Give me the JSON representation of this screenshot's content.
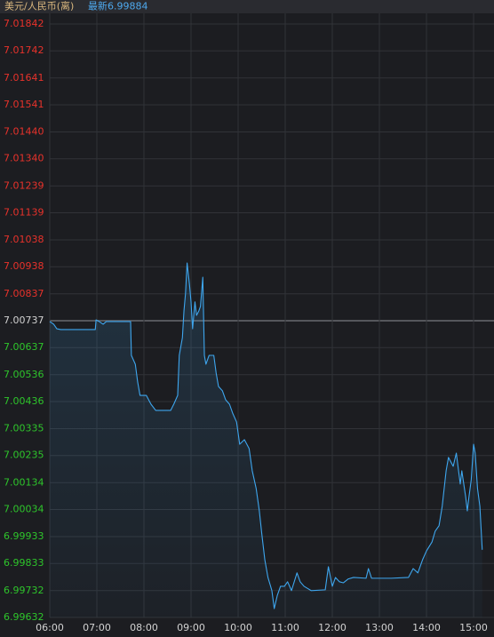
{
  "chart_data": {
    "type": "line",
    "title": "美元/人民币(离)",
    "subtitle": "最新6.99884",
    "x": [
      "06:00",
      "06:05",
      "06:09",
      "06:14",
      "06:58",
      "06:59",
      "07:03",
      "07:08",
      "07:12",
      "07:43",
      "07:44",
      "07:49",
      "07:52",
      "07:55",
      "08:03",
      "08:09",
      "08:15",
      "08:34",
      "08:38",
      "08:43",
      "08:45",
      "08:49",
      "08:51",
      "08:53",
      "08:55",
      "08:58",
      "09:00",
      "09:02",
      "09:05",
      "09:07",
      "09:10",
      "09:12",
      "09:15",
      "09:17",
      "09:19",
      "09:23",
      "09:29",
      "09:32",
      "09:35",
      "09:40",
      "09:44",
      "09:49",
      "09:53",
      "09:58",
      "10:02",
      "10:08",
      "10:14",
      "10:18",
      "10:23",
      "10:27",
      "10:30",
      "10:34",
      "10:38",
      "10:43",
      "10:46",
      "10:50",
      "10:54",
      "10:59",
      "11:03",
      "11:08",
      "11:15",
      "11:19",
      "11:24",
      "11:28",
      "11:33",
      "11:51",
      "11:55",
      "12:00",
      "12:04",
      "12:09",
      "12:14",
      "12:20",
      "12:27",
      "12:43",
      "12:46",
      "12:50",
      "13:15",
      "13:37",
      "13:43",
      "13:49",
      "13:55",
      "14:00",
      "14:07",
      "14:11",
      "14:16",
      "14:20",
      "14:25",
      "14:28",
      "14:34",
      "14:38",
      "14:43",
      "14:45",
      "14:50",
      "14:52",
      "14:54",
      "14:57",
      "15:00",
      "15:02",
      "15:05",
      "15:08",
      "15:11"
    ],
    "values": [
      7.00734,
      7.00724,
      7.00707,
      7.00704,
      7.00704,
      7.0074,
      7.00734,
      7.00724,
      7.00734,
      7.00734,
      7.00608,
      7.00575,
      7.00509,
      7.00459,
      7.00459,
      7.00426,
      7.00403,
      7.00403,
      7.00426,
      7.00459,
      7.00608,
      7.00674,
      7.00774,
      7.0084,
      7.00952,
      7.00873,
      7.00807,
      7.00707,
      7.00807,
      7.00757,
      7.00774,
      7.0079,
      7.00899,
      7.00608,
      7.00575,
      7.00608,
      7.00608,
      7.00542,
      7.00492,
      7.00476,
      7.00443,
      7.00426,
      7.00393,
      7.0036,
      7.00277,
      7.00294,
      7.00261,
      7.00178,
      7.00112,
      7.00029,
      6.99947,
      6.99847,
      6.99781,
      6.99732,
      6.99665,
      6.99715,
      6.99748,
      6.99748,
      6.99765,
      6.99732,
      6.99798,
      6.99765,
      6.99748,
      6.99741,
      6.99732,
      6.99735,
      6.99821,
      6.99748,
      6.99781,
      6.99765,
      6.99761,
      6.99775,
      6.99781,
      6.99778,
      6.99814,
      6.99778,
      6.99778,
      6.99781,
      6.99814,
      6.99798,
      6.99847,
      6.9988,
      6.99913,
      6.99953,
      6.99974,
      7.00046,
      7.00178,
      7.00228,
      7.00195,
      7.00244,
      7.00129,
      7.00178,
      7.00079,
      7.00029,
      7.00079,
      7.00145,
      7.00277,
      7.00244,
      7.00112,
      7.00046,
      6.99884
    ],
    "color": "#3ea6ee",
    "xlim": [
      "06:00",
      "15:26"
    ],
    "xticks": [
      "06:00",
      "07:00",
      "08:00",
      "09:00",
      "10:00",
      "11:00",
      "12:00",
      "13:00",
      "14:00",
      "15:00"
    ],
    "ylim": [
      6.99632,
      7.01842
    ],
    "yticks": [
      7.01842,
      7.01742,
      7.01641,
      7.01541,
      {
        "value": 7.0144,
        "label": "7.01440"
      },
      {
        "value": 7.0134,
        "label": "7.01340"
      },
      7.01239,
      7.01139,
      7.01038,
      7.00938,
      7.00837,
      7.00737,
      7.00637,
      7.00536,
      7.00436,
      7.00335,
      7.00235,
      7.00134,
      7.00034,
      6.99933,
      6.99833,
      6.99732,
      6.99632
    ],
    "baseline": 7.00737,
    "up_color": "#e8322b",
    "down_color": "#2ec52b",
    "grid": true
  }
}
